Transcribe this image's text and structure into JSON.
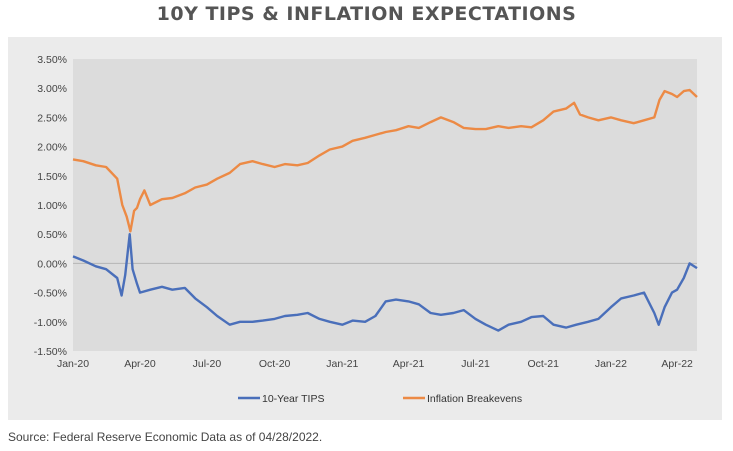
{
  "header": {
    "title": "10Y TIPS & INFLATION EXPECTATIONS"
  },
  "source": "Source: Federal Reserve Economic Data as of 04/28/2022.",
  "chart_data": {
    "type": "line",
    "title": "10Y TIPS & INFLATION EXPECTATIONS",
    "xlabel": "",
    "ylabel": "",
    "ylim": [
      -1.5,
      3.5
    ],
    "xlim": [
      "2020-01-01",
      "2022-04-28"
    ],
    "y_ticks": [
      "3.50%",
      "3.00%",
      "2.50%",
      "2.00%",
      "1.50%",
      "1.00%",
      "0.50%",
      "0.00%",
      "-0.50%",
      "-1.00%",
      "-1.50%"
    ],
    "y_tick_values": [
      3.5,
      3.0,
      2.5,
      2.0,
      1.5,
      1.0,
      0.5,
      0.0,
      -0.5,
      -1.0,
      -1.5
    ],
    "x_ticks": [
      "Jan-20",
      "Apr-20",
      "Jul-20",
      "Oct-20",
      "Jan-21",
      "Apr-21",
      "Jul-21",
      "Oct-21",
      "Jan-22",
      "Apr-22"
    ],
    "x_tick_dates": [
      "2020-01-01",
      "2020-04-01",
      "2020-07-01",
      "2020-10-01",
      "2021-01-01",
      "2021-04-01",
      "2021-07-01",
      "2021-10-01",
      "2022-01-01",
      "2022-04-01"
    ],
    "grid": "horizontal-zero-line",
    "legend": "bottom",
    "series": [
      {
        "name": "10-Year TIPS",
        "color": "#4a6fba",
        "points": [
          [
            "2020-01-01",
            0.12
          ],
          [
            "2020-01-15",
            0.05
          ],
          [
            "2020-02-01",
            -0.05
          ],
          [
            "2020-02-15",
            -0.1
          ],
          [
            "2020-03-01",
            -0.25
          ],
          [
            "2020-03-07",
            -0.55
          ],
          [
            "2020-03-12",
            -0.2
          ],
          [
            "2020-03-18",
            0.5
          ],
          [
            "2020-03-22",
            -0.1
          ],
          [
            "2020-03-28",
            -0.35
          ],
          [
            "2020-04-01",
            -0.5
          ],
          [
            "2020-04-15",
            -0.45
          ],
          [
            "2020-05-01",
            -0.4
          ],
          [
            "2020-05-15",
            -0.45
          ],
          [
            "2020-06-01",
            -0.42
          ],
          [
            "2020-06-15",
            -0.6
          ],
          [
            "2020-07-01",
            -0.75
          ],
          [
            "2020-07-15",
            -0.9
          ],
          [
            "2020-08-01",
            -1.05
          ],
          [
            "2020-08-15",
            -1.0
          ],
          [
            "2020-09-01",
            -1.0
          ],
          [
            "2020-09-15",
            -0.98
          ],
          [
            "2020-10-01",
            -0.95
          ],
          [
            "2020-10-15",
            -0.9
          ],
          [
            "2020-11-01",
            -0.88
          ],
          [
            "2020-11-15",
            -0.85
          ],
          [
            "2020-12-01",
            -0.95
          ],
          [
            "2020-12-15",
            -1.0
          ],
          [
            "2021-01-01",
            -1.05
          ],
          [
            "2021-01-15",
            -0.98
          ],
          [
            "2021-02-01",
            -1.0
          ],
          [
            "2021-02-15",
            -0.9
          ],
          [
            "2021-03-01",
            -0.65
          ],
          [
            "2021-03-15",
            -0.62
          ],
          [
            "2021-04-01",
            -0.65
          ],
          [
            "2021-04-15",
            -0.7
          ],
          [
            "2021-05-01",
            -0.85
          ],
          [
            "2021-05-15",
            -0.88
          ],
          [
            "2021-06-01",
            -0.85
          ],
          [
            "2021-06-15",
            -0.8
          ],
          [
            "2021-07-01",
            -0.95
          ],
          [
            "2021-07-15",
            -1.05
          ],
          [
            "2021-08-01",
            -1.15
          ],
          [
            "2021-08-15",
            -1.05
          ],
          [
            "2021-09-01",
            -1.0
          ],
          [
            "2021-09-15",
            -0.92
          ],
          [
            "2021-10-01",
            -0.9
          ],
          [
            "2021-10-15",
            -1.05
          ],
          [
            "2021-11-01",
            -1.1
          ],
          [
            "2021-11-15",
            -1.05
          ],
          [
            "2021-12-01",
            -1.0
          ],
          [
            "2021-12-15",
            -0.95
          ],
          [
            "2022-01-01",
            -0.75
          ],
          [
            "2022-01-15",
            -0.6
          ],
          [
            "2022-02-01",
            -0.55
          ],
          [
            "2022-02-15",
            -0.5
          ],
          [
            "2022-03-01",
            -0.85
          ],
          [
            "2022-03-07",
            -1.05
          ],
          [
            "2022-03-15",
            -0.75
          ],
          [
            "2022-03-25",
            -0.5
          ],
          [
            "2022-04-01",
            -0.45
          ],
          [
            "2022-04-10",
            -0.25
          ],
          [
            "2022-04-18",
            0.0
          ],
          [
            "2022-04-28",
            -0.08
          ]
        ]
      },
      {
        "name": "Inflation Breakevens",
        "color": "#ec8a45",
        "points": [
          [
            "2020-01-01",
            1.78
          ],
          [
            "2020-01-15",
            1.75
          ],
          [
            "2020-02-01",
            1.68
          ],
          [
            "2020-02-15",
            1.65
          ],
          [
            "2020-03-01",
            1.45
          ],
          [
            "2020-03-08",
            1.0
          ],
          [
            "2020-03-14",
            0.8
          ],
          [
            "2020-03-19",
            0.55
          ],
          [
            "2020-03-24",
            0.9
          ],
          [
            "2020-03-28",
            0.95
          ],
          [
            "2020-04-01",
            1.1
          ],
          [
            "2020-04-07",
            1.25
          ],
          [
            "2020-04-15",
            1.0
          ],
          [
            "2020-05-01",
            1.1
          ],
          [
            "2020-05-15",
            1.12
          ],
          [
            "2020-06-01",
            1.2
          ],
          [
            "2020-06-15",
            1.3
          ],
          [
            "2020-07-01",
            1.35
          ],
          [
            "2020-07-15",
            1.45
          ],
          [
            "2020-08-01",
            1.55
          ],
          [
            "2020-08-15",
            1.7
          ],
          [
            "2020-09-01",
            1.75
          ],
          [
            "2020-09-15",
            1.7
          ],
          [
            "2020-10-01",
            1.65
          ],
          [
            "2020-10-15",
            1.7
          ],
          [
            "2020-11-01",
            1.68
          ],
          [
            "2020-11-15",
            1.72
          ],
          [
            "2020-12-01",
            1.85
          ],
          [
            "2020-12-15",
            1.95
          ],
          [
            "2021-01-01",
            2.0
          ],
          [
            "2021-01-15",
            2.1
          ],
          [
            "2021-02-01",
            2.15
          ],
          [
            "2021-02-15",
            2.2
          ],
          [
            "2021-03-01",
            2.25
          ],
          [
            "2021-03-15",
            2.28
          ],
          [
            "2021-04-01",
            2.35
          ],
          [
            "2021-04-15",
            2.32
          ],
          [
            "2021-05-01",
            2.42
          ],
          [
            "2021-05-15",
            2.5
          ],
          [
            "2021-06-01",
            2.42
          ],
          [
            "2021-06-15",
            2.32
          ],
          [
            "2021-07-01",
            2.3
          ],
          [
            "2021-07-15",
            2.3
          ],
          [
            "2021-08-01",
            2.35
          ],
          [
            "2021-08-15",
            2.32
          ],
          [
            "2021-09-01",
            2.35
          ],
          [
            "2021-09-15",
            2.33
          ],
          [
            "2021-10-01",
            2.45
          ],
          [
            "2021-10-15",
            2.6
          ],
          [
            "2021-11-01",
            2.65
          ],
          [
            "2021-11-12",
            2.75
          ],
          [
            "2021-11-20",
            2.55
          ],
          [
            "2021-12-01",
            2.5
          ],
          [
            "2021-12-15",
            2.45
          ],
          [
            "2022-01-01",
            2.5
          ],
          [
            "2022-01-15",
            2.45
          ],
          [
            "2022-02-01",
            2.4
          ],
          [
            "2022-02-15",
            2.45
          ],
          [
            "2022-03-01",
            2.5
          ],
          [
            "2022-03-08",
            2.8
          ],
          [
            "2022-03-15",
            2.95
          ],
          [
            "2022-03-25",
            2.9
          ],
          [
            "2022-04-01",
            2.85
          ],
          [
            "2022-04-10",
            2.95
          ],
          [
            "2022-04-18",
            2.97
          ],
          [
            "2022-04-28",
            2.85
          ]
        ]
      }
    ]
  }
}
